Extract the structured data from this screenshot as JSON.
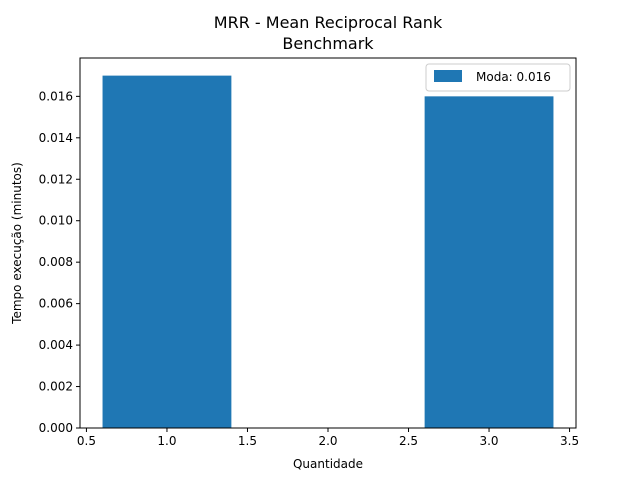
{
  "chart_data": {
    "type": "bar",
    "title_lines": [
      "MRR - Mean Reciprocal Rank",
      "Benchmark"
    ],
    "xlabel": "Quantidade",
    "ylabel": "Tempo execução (minutos)",
    "x": [
      1,
      3
    ],
    "bar_width": 0.8,
    "values": [
      0.017,
      0.016
    ],
    "xlim": [
      0.46,
      3.54
    ],
    "ylim": [
      0,
      0.01785
    ],
    "xticks": [
      0.5,
      1.0,
      1.5,
      2.0,
      2.5,
      3.0,
      3.5
    ],
    "xtick_labels": [
      "0.5",
      "1.0",
      "1.5",
      "2.0",
      "2.5",
      "3.0",
      "3.5"
    ],
    "yticks": [
      0,
      0.002,
      0.004,
      0.006,
      0.008,
      0.01,
      0.012,
      0.014,
      0.016
    ],
    "ytick_labels": [
      "0.000",
      "0.002",
      "0.004",
      "0.006",
      "0.008",
      "0.010",
      "0.012",
      "0.014",
      "0.016"
    ],
    "legend": {
      "label": "Moda: 0.016",
      "placement": "top-right"
    },
    "bar_color": "#1f77b4",
    "grid": false
  }
}
